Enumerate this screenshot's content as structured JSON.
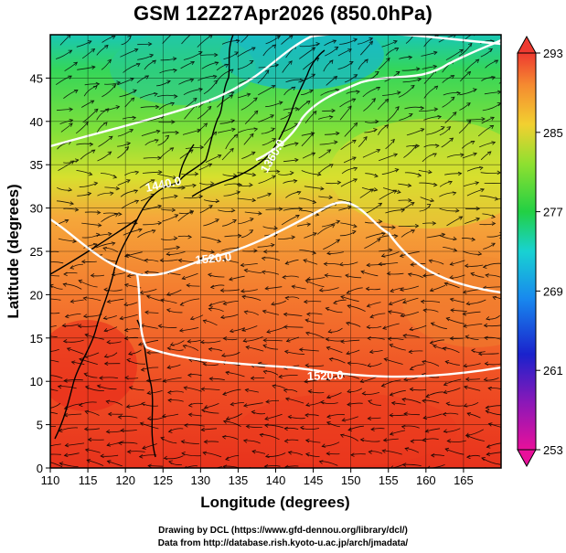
{
  "title": "GSM 12Z27Apr2026 (850.0hPa)",
  "x_axis": {
    "label": "Longitude (degrees)",
    "range": [
      110,
      170
    ],
    "ticks": [
      "110",
      "115",
      "120",
      "125",
      "130",
      "135",
      "140",
      "145",
      "150",
      "155",
      "160",
      "165"
    ]
  },
  "y_axis": {
    "label": "Latitude  (degrees)",
    "range": [
      0,
      50
    ],
    "ticks": [
      "0",
      "5",
      "10",
      "15",
      "20",
      "25",
      "30",
      "35",
      "40",
      "45"
    ]
  },
  "colorbar": {
    "min": 253,
    "max": 293,
    "labels": [
      "293",
      "285",
      "277",
      "269",
      "261",
      "253"
    ]
  },
  "contours": [
    {
      "label": "1520.0"
    },
    {
      "label": "1520.0"
    },
    {
      "label": "1440.0"
    },
    {
      "label": "1360.0"
    }
  ],
  "credits": {
    "line1": "Drawing by DCL (https://www.gfd-dennou.org/library/dcl/)",
    "line2": "Data from http://database.rish.kyoto-u.ac.jp/arch/jmadata/"
  },
  "colors": {
    "coastline": "#000000",
    "contour": "#ffffff",
    "streamline": "#000000"
  }
}
